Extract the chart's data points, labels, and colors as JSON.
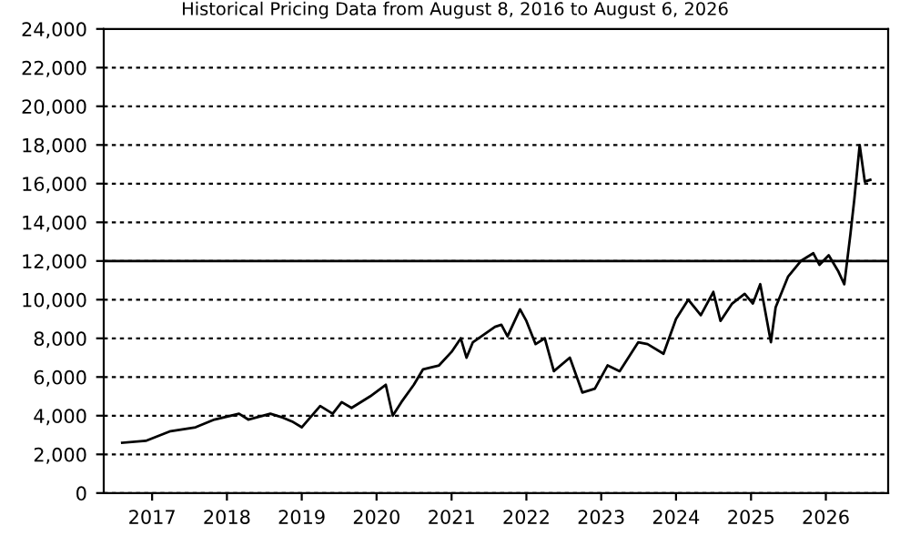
{
  "chart_data": {
    "type": "line",
    "title": "Historical Pricing Data from August 8, 2016 to August 6, 2026",
    "x": [
      "2016-08-08",
      "2016-12-01",
      "2017-04-01",
      "2017-08-01",
      "2017-11-01",
      "2018-03-01",
      "2018-04-15",
      "2018-08-01",
      "2018-10-01",
      "2018-11-15",
      "2019-01-01",
      "2019-04-01",
      "2019-06-01",
      "2019-07-15",
      "2019-09-01",
      "2019-12-01",
      "2020-02-15",
      "2020-03-20",
      "2020-05-01",
      "2020-07-01",
      "2020-08-15",
      "2020-11-01",
      "2021-01-01",
      "2021-02-15",
      "2021-03-15",
      "2021-04-15",
      "2021-08-01",
      "2021-09-01",
      "2021-10-01",
      "2021-12-01",
      "2022-01-01",
      "2022-02-15",
      "2022-04-01",
      "2022-05-15",
      "2022-08-01",
      "2022-10-01",
      "2022-12-01",
      "2023-02-01",
      "2023-04-01",
      "2023-07-01",
      "2023-08-15",
      "2023-11-01",
      "2024-01-01",
      "2024-03-01",
      "2024-05-01",
      "2024-07-01",
      "2024-08-05",
      "2024-10-01",
      "2024-12-01",
      "2025-01-10",
      "2025-02-15",
      "2025-04-08",
      "2025-05-01",
      "2025-07-01",
      "2025-09-01",
      "2025-11-01",
      "2025-12-01",
      "2026-01-15",
      "2026-03-01",
      "2026-04-01",
      "2026-05-01",
      "2026-05-20",
      "2026-06-15",
      "2026-07-10",
      "2026-08-06"
    ],
    "series": [
      {
        "color": "#000000",
        "values": [
          2600,
          2700,
          3200,
          3400,
          3800,
          4100,
          3800,
          4100,
          3900,
          3700,
          3400,
          4500,
          4100,
          4700,
          4400,
          5000,
          5600,
          4000,
          4700,
          5600,
          6400,
          6600,
          7300,
          8000,
          7000,
          7800,
          8600,
          8700,
          8100,
          9500,
          8900,
          7700,
          8000,
          6300,
          7000,
          5200,
          5400,
          6600,
          6300,
          7800,
          7700,
          7200,
          9000,
          10000,
          9200,
          10400,
          8900,
          9800,
          10300,
          9800,
          10800,
          7800,
          9600,
          11200,
          12000,
          12400,
          11800,
          12300,
          11500,
          10800,
          13400,
          15200,
          18000,
          16100,
          16200
        ]
      }
    ],
    "ylim": [
      0,
      24000
    ],
    "yticks": [
      {
        "value": 0,
        "label": "0"
      },
      {
        "value": 2000,
        "label": "2,000"
      },
      {
        "value": 4000,
        "label": "4,000"
      },
      {
        "value": 6000,
        "label": "6,000"
      },
      {
        "value": 8000,
        "label": "8,000"
      },
      {
        "value": 10000,
        "label": "10,000"
      },
      {
        "value": 12000,
        "label": "12,000"
      },
      {
        "value": 14000,
        "label": "14,000"
      },
      {
        "value": 16000,
        "label": "16,000"
      },
      {
        "value": 18000,
        "label": "18,000"
      },
      {
        "value": 20000,
        "label": "20,000"
      },
      {
        "value": 22000,
        "label": "22,000"
      },
      {
        "value": 24000,
        "label": "24,000"
      }
    ],
    "xlim": [
      "2016-05-10",
      "2026-11-01"
    ],
    "xticks": [
      {
        "value": "2017-01-01",
        "label": "2017"
      },
      {
        "value": "2018-01-01",
        "label": "2018"
      },
      {
        "value": "2019-01-01",
        "label": "2019"
      },
      {
        "value": "2020-01-01",
        "label": "2020"
      },
      {
        "value": "2021-01-01",
        "label": "2021"
      },
      {
        "value": "2022-01-01",
        "label": "2022"
      },
      {
        "value": "2023-01-01",
        "label": "2023"
      },
      {
        "value": "2024-01-01",
        "label": "2024"
      },
      {
        "value": "2025-01-01",
        "label": "2025"
      },
      {
        "value": "2026-01-01",
        "label": "2026"
      }
    ],
    "grid": "y",
    "ref_lines": [
      {
        "axis": "y",
        "value": 12000,
        "color": "#000000",
        "line_style": "solid"
      }
    ],
    "line_style": "solid",
    "marker": "none",
    "legend": false
  }
}
